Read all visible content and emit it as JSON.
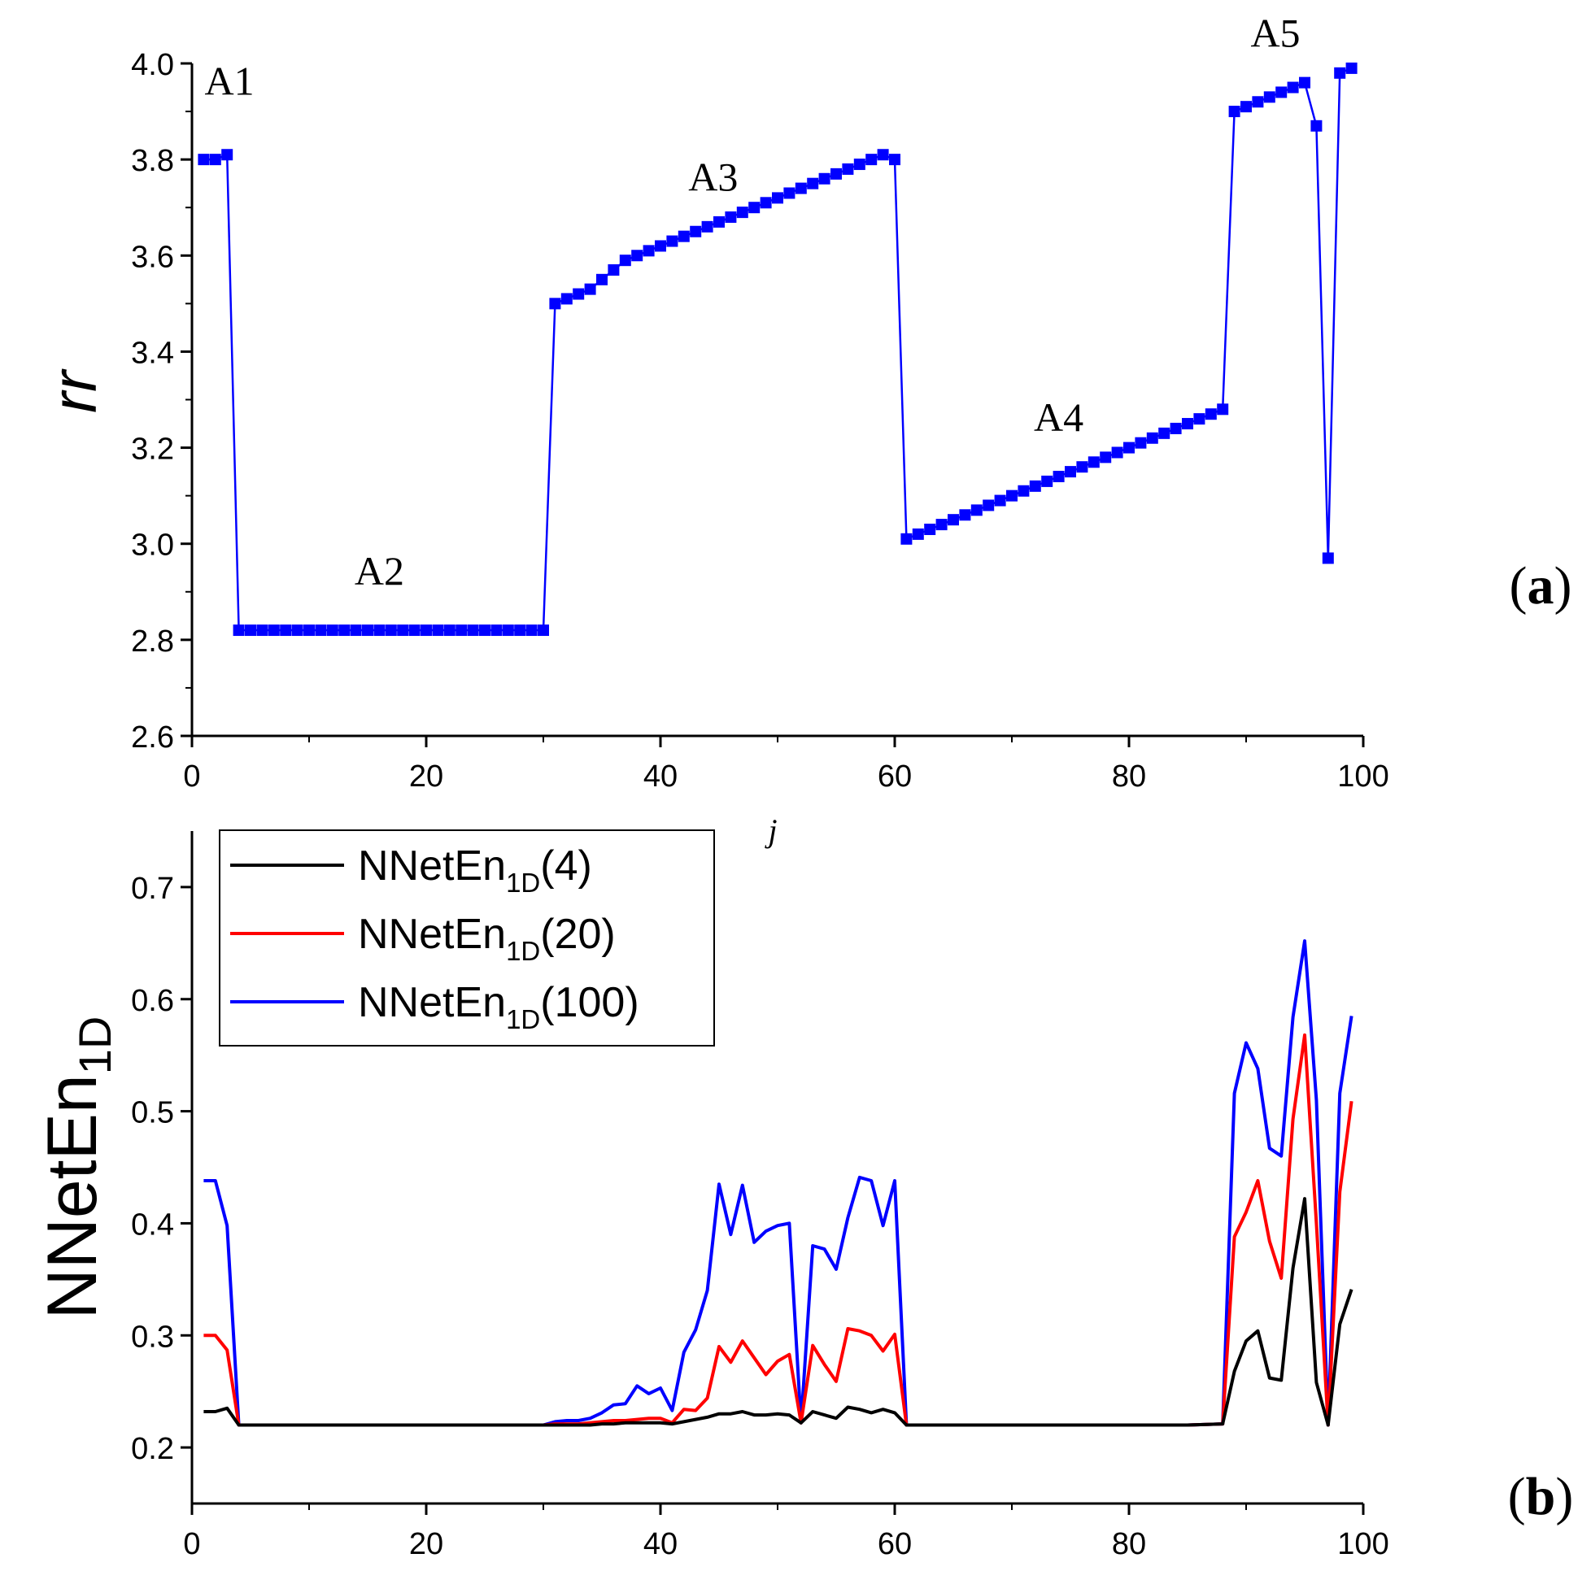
{
  "chart_data": [
    {
      "type": "line",
      "panel_label_open": "(",
      "panel_label_letter": "a",
      "panel_label_close": ")",
      "ylabel": "rr",
      "xlabel": "j",
      "xlim": [
        0,
        100
      ],
      "ylim": [
        2.6,
        4.0
      ],
      "xticks": [
        0,
        20,
        40,
        60,
        80,
        100
      ],
      "yticks": [
        2.6,
        2.8,
        3.0,
        3.2,
        3.4,
        3.6,
        3.8,
        4.0
      ],
      "ytick_labels": [
        "2.6",
        "2.8",
        "3.0",
        "3.2",
        "3.4",
        "3.6",
        "3.8",
        "4.0"
      ],
      "series": [
        {
          "name": "rr",
          "color": "#0000ff",
          "marker": "square",
          "x": [
            1,
            2,
            3,
            4,
            5,
            6,
            7,
            8,
            9,
            10,
            11,
            12,
            13,
            14,
            15,
            16,
            17,
            18,
            19,
            20,
            21,
            22,
            23,
            24,
            25,
            26,
            27,
            28,
            29,
            30,
            31,
            32,
            33,
            34,
            35,
            36,
            37,
            38,
            39,
            40,
            41,
            42,
            43,
            44,
            45,
            46,
            47,
            48,
            49,
            50,
            51,
            52,
            53,
            54,
            55,
            56,
            57,
            58,
            59,
            60,
            61,
            62,
            63,
            64,
            65,
            66,
            67,
            68,
            69,
            70,
            71,
            72,
            73,
            74,
            75,
            76,
            77,
            78,
            79,
            80,
            81,
            82,
            83,
            84,
            85,
            86,
            87,
            88,
            89,
            90,
            91,
            92,
            93,
            94,
            95,
            96,
            97,
            98,
            99
          ],
          "values": [
            3.8,
            3.8,
            3.81,
            2.82,
            2.82,
            2.82,
            2.82,
            2.82,
            2.82,
            2.82,
            2.82,
            2.82,
            2.82,
            2.82,
            2.82,
            2.82,
            2.82,
            2.82,
            2.82,
            2.82,
            2.82,
            2.82,
            2.82,
            2.82,
            2.82,
            2.82,
            2.82,
            2.82,
            2.82,
            2.82,
            3.5,
            3.51,
            3.52,
            3.53,
            3.55,
            3.57,
            3.59,
            3.6,
            3.61,
            3.62,
            3.63,
            3.64,
            3.65,
            3.66,
            3.67,
            3.68,
            3.69,
            3.7,
            3.71,
            3.72,
            3.73,
            3.74,
            3.75,
            3.76,
            3.77,
            3.78,
            3.79,
            3.8,
            3.81,
            3.8,
            3.01,
            3.02,
            3.03,
            3.04,
            3.05,
            3.06,
            3.07,
            3.08,
            3.09,
            3.1,
            3.11,
            3.12,
            3.13,
            3.14,
            3.15,
            3.16,
            3.17,
            3.18,
            3.19,
            3.2,
            3.21,
            3.22,
            3.23,
            3.24,
            3.25,
            3.26,
            3.27,
            3.28,
            3.9,
            3.91,
            3.92,
            3.93,
            3.94,
            3.95,
            3.96,
            3.87,
            2.97,
            3.98,
            3.99
          ]
        }
      ],
      "annotations": [
        {
          "text": "A1",
          "x": 3.2,
          "y": 3.935
        },
        {
          "text": "A2",
          "x": 16,
          "y": 2.915
        },
        {
          "text": "A3",
          "x": 44.5,
          "y": 3.735
        },
        {
          "text": "A4",
          "x": 74,
          "y": 3.235
        },
        {
          "text": "A5",
          "x": 92.5,
          "y": 4.035
        }
      ]
    },
    {
      "type": "line",
      "panel_label_open": "(",
      "panel_label_letter": "b",
      "panel_label_close": ")",
      "ylabel_main": "NNetEn",
      "ylabel_sub": "1D",
      "xlim": [
        0,
        100
      ],
      "ylim": [
        0.15,
        0.75
      ],
      "xticks": [
        0,
        20,
        40,
        60,
        80,
        100
      ],
      "yticks": [
        0.2,
        0.3,
        0.4,
        0.5,
        0.6,
        0.7
      ],
      "ytick_labels": [
        "0.2",
        "0.3",
        "0.4",
        "0.5",
        "0.6",
        "0.7"
      ],
      "legend_position": "top-left",
      "series": [
        {
          "name_main": "NNetEn",
          "name_sub": "1D",
          "name_param": "(4)",
          "color": "#000000",
          "x": [
            1,
            2,
            3,
            4,
            5,
            10,
            15,
            20,
            25,
            30,
            31,
            32,
            33,
            34,
            35,
            36,
            37,
            38,
            39,
            40,
            41,
            42,
            43,
            44,
            45,
            46,
            47,
            48,
            49,
            50,
            51,
            52,
            53,
            54,
            55,
            56,
            57,
            58,
            59,
            60,
            61,
            65,
            70,
            75,
            80,
            85,
            88,
            89,
            90,
            91,
            92,
            93,
            94,
            95,
            96,
            97,
            98,
            99
          ],
          "values": [
            0.232,
            0.232,
            0.235,
            0.22,
            0.22,
            0.22,
            0.22,
            0.22,
            0.22,
            0.22,
            0.22,
            0.22,
            0.22,
            0.22,
            0.221,
            0.221,
            0.222,
            0.222,
            0.222,
            0.222,
            0.221,
            0.223,
            0.225,
            0.227,
            0.23,
            0.23,
            0.232,
            0.229,
            0.229,
            0.23,
            0.229,
            0.222,
            0.232,
            0.229,
            0.226,
            0.236,
            0.234,
            0.231,
            0.234,
            0.231,
            0.22,
            0.22,
            0.22,
            0.22,
            0.22,
            0.22,
            0.221,
            0.268,
            0.295,
            0.304,
            0.262,
            0.26,
            0.36,
            0.422,
            0.258,
            0.22,
            0.31,
            0.341
          ]
        },
        {
          "name_main": "NNetEn",
          "name_sub": "1D",
          "name_param": "(20)",
          "color": "#ff0000",
          "x": [
            1,
            2,
            3,
            4,
            5,
            10,
            15,
            20,
            25,
            30,
            31,
            32,
            33,
            34,
            35,
            36,
            37,
            38,
            39,
            40,
            41,
            42,
            43,
            44,
            45,
            46,
            47,
            48,
            49,
            50,
            51,
            52,
            53,
            54,
            55,
            56,
            57,
            58,
            59,
            60,
            61,
            65,
            70,
            75,
            80,
            85,
            88,
            89,
            90,
            91,
            92,
            93,
            94,
            95,
            96,
            97,
            98,
            99
          ],
          "values": [
            0.3,
            0.3,
            0.287,
            0.22,
            0.22,
            0.22,
            0.22,
            0.22,
            0.22,
            0.22,
            0.221,
            0.221,
            0.221,
            0.222,
            0.223,
            0.224,
            0.224,
            0.225,
            0.226,
            0.226,
            0.222,
            0.234,
            0.233,
            0.244,
            0.29,
            0.276,
            0.295,
            0.28,
            0.265,
            0.277,
            0.283,
            0.222,
            0.291,
            0.274,
            0.259,
            0.306,
            0.304,
            0.3,
            0.286,
            0.301,
            0.22,
            0.22,
            0.22,
            0.22,
            0.22,
            0.22,
            0.221,
            0.388,
            0.41,
            0.438,
            0.384,
            0.351,
            0.493,
            0.568,
            0.4,
            0.22,
            0.428,
            0.509
          ]
        },
        {
          "name_main": "NNetEn",
          "name_sub": "1D",
          "name_param": "(100)",
          "color": "#0000ff",
          "x": [
            1,
            2,
            3,
            4,
            5,
            10,
            15,
            20,
            25,
            30,
            31,
            32,
            33,
            34,
            35,
            36,
            37,
            38,
            39,
            40,
            41,
            42,
            43,
            44,
            45,
            46,
            47,
            48,
            49,
            50,
            51,
            52,
            53,
            54,
            55,
            56,
            57,
            58,
            59,
            60,
            61,
            65,
            70,
            75,
            80,
            85,
            88,
            89,
            90,
            91,
            92,
            93,
            94,
            95,
            96,
            97,
            98,
            99
          ],
          "values": [
            0.438,
            0.438,
            0.398,
            0.22,
            0.22,
            0.22,
            0.22,
            0.22,
            0.22,
            0.22,
            0.223,
            0.224,
            0.224,
            0.226,
            0.231,
            0.238,
            0.239,
            0.255,
            0.248,
            0.253,
            0.233,
            0.285,
            0.305,
            0.34,
            0.435,
            0.39,
            0.434,
            0.383,
            0.393,
            0.398,
            0.4,
            0.222,
            0.38,
            0.377,
            0.359,
            0.405,
            0.441,
            0.438,
            0.398,
            0.438,
            0.22,
            0.22,
            0.22,
            0.22,
            0.22,
            0.22,
            0.221,
            0.516,
            0.561,
            0.538,
            0.467,
            0.46,
            0.584,
            0.652,
            0.51,
            0.22,
            0.516,
            0.585
          ]
        }
      ]
    }
  ]
}
